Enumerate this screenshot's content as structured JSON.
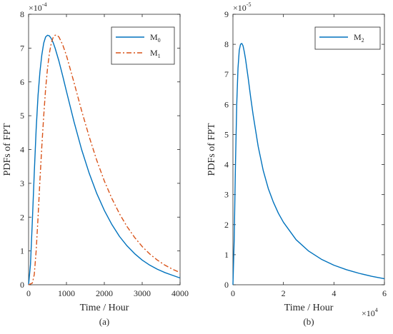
{
  "chart_data": [
    {
      "type": "line",
      "panel_label": "(a)",
      "xlabel": "Time / Hour",
      "ylabel": "PDFs of FPT",
      "xlim": [
        0,
        4000
      ],
      "ylim": [
        0,
        8
      ],
      "x_ticks": [
        "0",
        "1000",
        "2000",
        "3000",
        "4000"
      ],
      "y_ticks": [
        "0",
        "1",
        "2",
        "3",
        "4",
        "5",
        "6",
        "7",
        "8"
      ],
      "y_multiplier": {
        "base": "×10",
        "exponent": "-4"
      },
      "legend": {
        "position": "top-right"
      },
      "grid": false,
      "series": [
        {
          "name": "M",
          "subscript": "0",
          "color": "#0072BD",
          "style": "solid",
          "x": [
            0,
            50,
            100,
            150,
            200,
            250,
            300,
            350,
            400,
            450,
            500,
            550,
            600,
            650,
            700,
            800,
            900,
            1000,
            1200,
            1400,
            1600,
            1800,
            2000,
            2200,
            2400,
            2600,
            2800,
            3000,
            3200,
            3400,
            3600,
            3800,
            4000
          ],
          "values": [
            0,
            0.6,
            1.9,
            3.3,
            4.6,
            5.6,
            6.3,
            6.8,
            7.15,
            7.33,
            7.38,
            7.36,
            7.28,
            7.16,
            7.0,
            6.62,
            6.18,
            5.72,
            4.82,
            4.0,
            3.3,
            2.7,
            2.2,
            1.78,
            1.43,
            1.15,
            0.92,
            0.73,
            0.58,
            0.46,
            0.36,
            0.28,
            0.2
          ]
        },
        {
          "name": "M",
          "subscript": "1",
          "color": "#D95319",
          "style": "dashdot",
          "x": [
            0,
            100,
            150,
            200,
            250,
            300,
            350,
            400,
            450,
            500,
            550,
            600,
            650,
            700,
            750,
            800,
            900,
            1000,
            1200,
            1400,
            1600,
            1800,
            2000,
            2200,
            2400,
            2600,
            2800,
            3000,
            3200,
            3400,
            3600,
            3800,
            4000
          ],
          "values": [
            0,
            0.05,
            0.3,
            1.0,
            2.0,
            3.1,
            4.1,
            5.0,
            5.8,
            6.4,
            6.85,
            7.15,
            7.32,
            7.38,
            7.38,
            7.33,
            7.1,
            6.78,
            5.98,
            5.15,
            4.38,
            3.68,
            3.07,
            2.55,
            2.1,
            1.72,
            1.4,
            1.13,
            0.91,
            0.73,
            0.58,
            0.46,
            0.36
          ]
        }
      ]
    },
    {
      "type": "line",
      "panel_label": "(b)",
      "xlabel": "Time / Hour",
      "ylabel": "PDFs of FPT",
      "xlim": [
        0,
        6
      ],
      "ylim": [
        0,
        9
      ],
      "x_ticks": [
        "0",
        "2",
        "4",
        "6"
      ],
      "y_ticks": [
        "0",
        "1",
        "2",
        "3",
        "4",
        "5",
        "6",
        "7",
        "8",
        "9"
      ],
      "y_multiplier": {
        "base": "×10",
        "exponent": "-5"
      },
      "x_multiplier": {
        "base": "×10",
        "exponent": "4"
      },
      "legend": {
        "position": "top-right"
      },
      "grid": false,
      "series": [
        {
          "name": "M",
          "subscript": "2",
          "color": "#0072BD",
          "style": "solid",
          "x": [
            0,
            0.05,
            0.1,
            0.15,
            0.2,
            0.25,
            0.3,
            0.35,
            0.4,
            0.45,
            0.5,
            0.6,
            0.7,
            0.8,
            1.0,
            1.2,
            1.4,
            1.6,
            1.8,
            2.0,
            2.5,
            3.0,
            3.5,
            4.0,
            4.5,
            5.0,
            5.5,
            6.0
          ],
          "values": [
            0,
            1.5,
            4.0,
            6.0,
            7.2,
            7.8,
            8.0,
            8.03,
            7.95,
            7.75,
            7.5,
            6.9,
            6.25,
            5.65,
            4.6,
            3.8,
            3.2,
            2.75,
            2.38,
            2.08,
            1.5,
            1.12,
            0.85,
            0.65,
            0.5,
            0.38,
            0.28,
            0.2
          ]
        }
      ]
    }
  ]
}
